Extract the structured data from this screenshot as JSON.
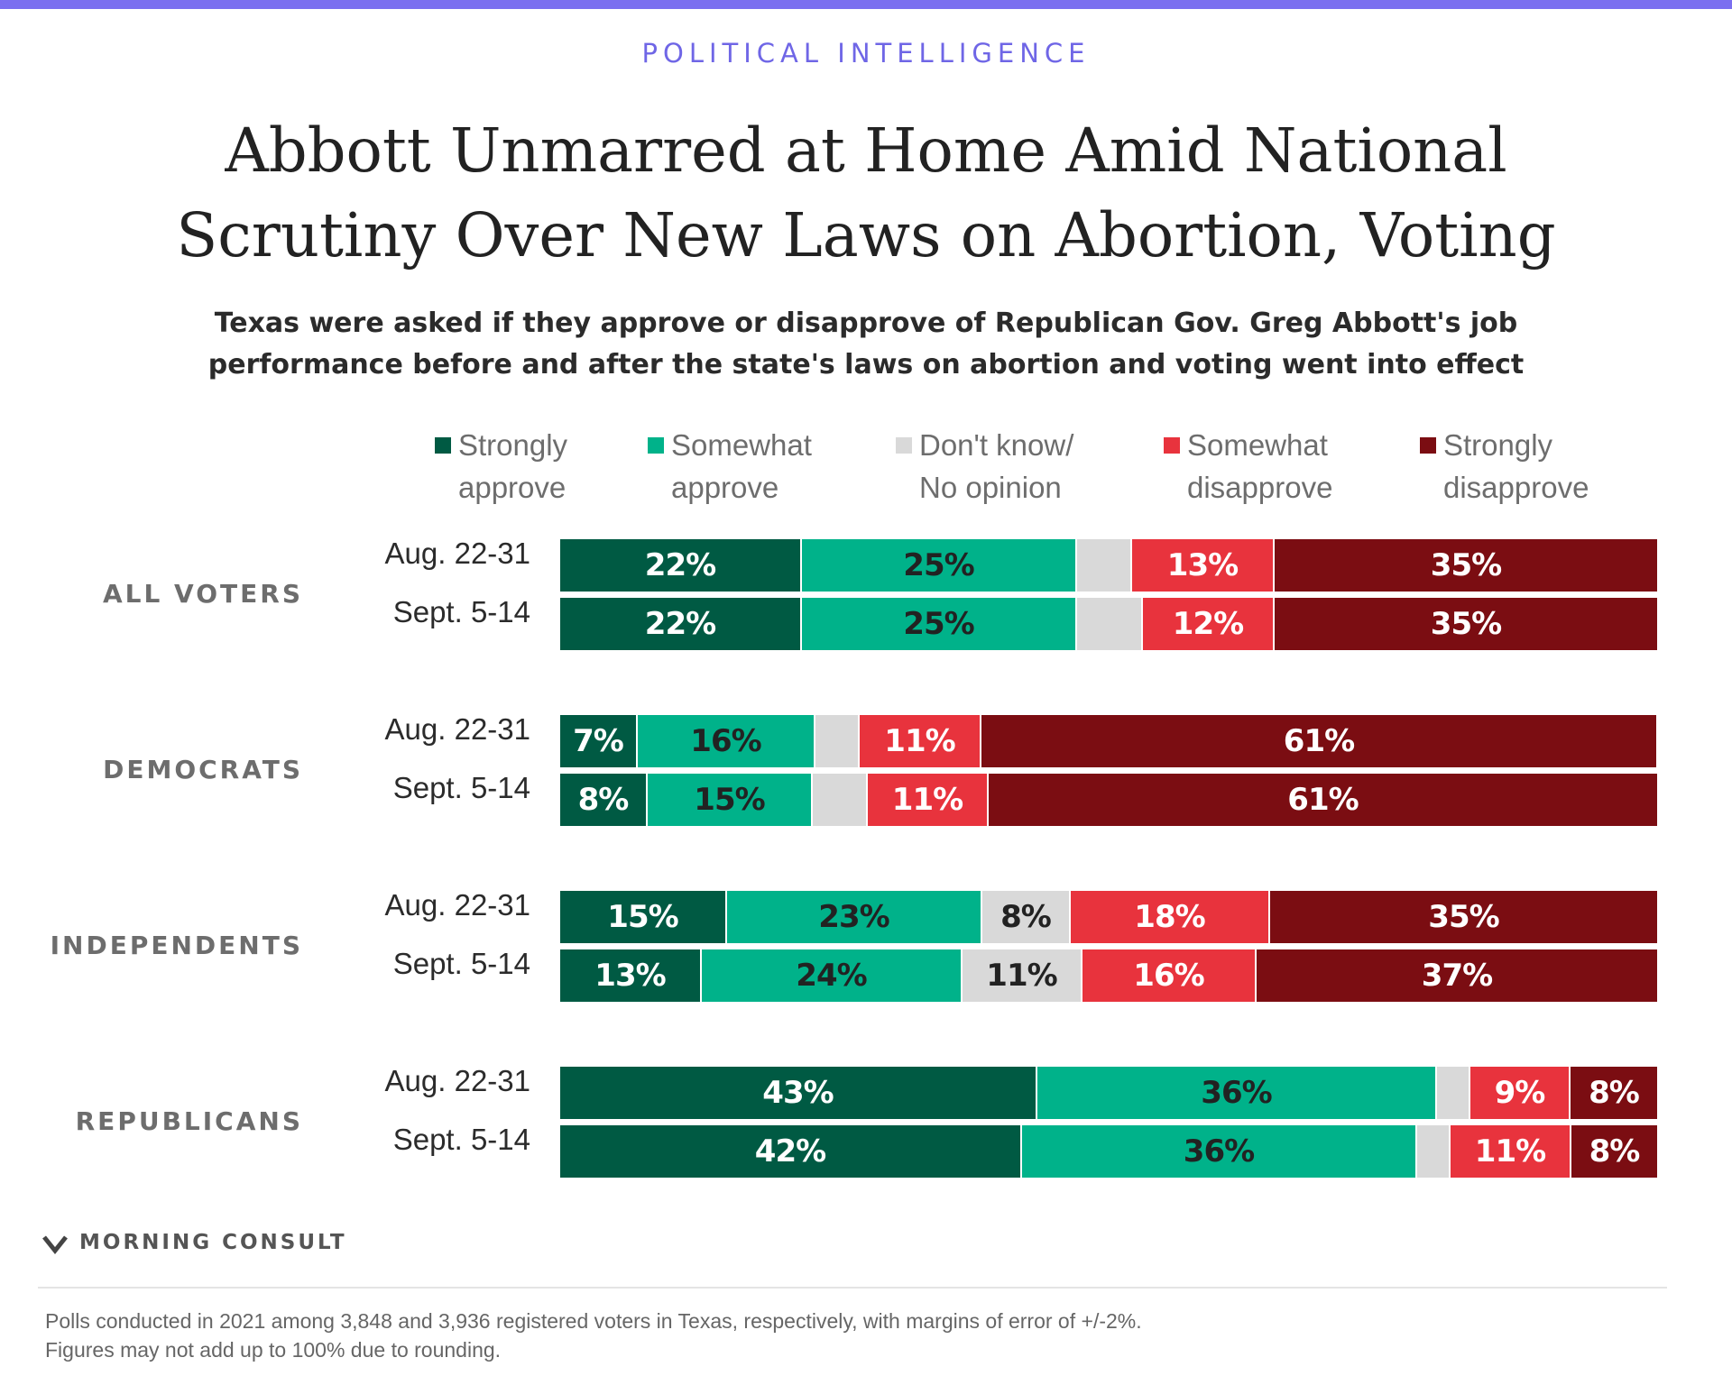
{
  "header": {
    "kicker": "POLITICAL INTELLIGENCE",
    "title_line1": "Abbott Unmarred at Home Amid National",
    "title_line2": "Scrutiny Over New Laws on Abortion, Voting",
    "subtitle_line1": "Texas were asked if they approve or disapprove of Republican Gov. Greg Abbott's job",
    "subtitle_line2": "performance before and after the state's laws on abortion and voting went into effect"
  },
  "legend": [
    {
      "line1": "Strongly",
      "line2": "approve",
      "color": "#005a43"
    },
    {
      "line1": "Somewhat",
      "line2": "approve",
      "color": "#00b28a"
    },
    {
      "line1": "Don't know/",
      "line2": "No opinion",
      "color": "#d9d9d9"
    },
    {
      "line1": "Somewhat",
      "line2": "disapprove",
      "color": "#e8333d"
    },
    {
      "line1": "Strongly",
      "line2": "disapprove",
      "color": "#7b0d12"
    }
  ],
  "chart_data": {
    "type": "bar",
    "orientation": "horizontal",
    "stacked": true,
    "units": "percent",
    "segments": [
      "Strongly approve",
      "Somewhat approve",
      "Don't know/ No opinion",
      "Somewhat disapprove",
      "Strongly disapprove"
    ],
    "colors": [
      "#005a43",
      "#00b28a",
      "#d9d9d9",
      "#e8333d",
      "#7b0d12"
    ],
    "label_colors": [
      "#ffffff",
      "#222222",
      "#222222",
      "#ffffff",
      "#ffffff"
    ],
    "groups": [
      {
        "name": "ALL VOTERS",
        "rows": [
          {
            "period": "Aug. 22-31",
            "values": [
              22,
              25,
              5,
              13,
              35
            ],
            "labels": [
              "22%",
              "25%",
              "",
              "13%",
              "35%"
            ]
          },
          {
            "period": "Sept. 5-14",
            "values": [
              22,
              25,
              6,
              12,
              35
            ],
            "labels": [
              "22%",
              "25%",
              "",
              "12%",
              "35%"
            ]
          }
        ]
      },
      {
        "name": "DEMOCRATS",
        "rows": [
          {
            "period": "Aug. 22-31",
            "values": [
              7,
              16,
              4,
              11,
              61
            ],
            "labels": [
              "7%",
              "16%",
              "",
              "11%",
              "61%"
            ]
          },
          {
            "period": "Sept. 5-14",
            "values": [
              8,
              15,
              5,
              11,
              61
            ],
            "labels": [
              "8%",
              "15%",
              "",
              "11%",
              "61%"
            ]
          }
        ]
      },
      {
        "name": "INDEPENDENTS",
        "rows": [
          {
            "period": "Aug. 22-31",
            "values": [
              15,
              23,
              8,
              18,
              35
            ],
            "labels": [
              "15%",
              "23%",
              "8%",
              "18%",
              "35%"
            ]
          },
          {
            "period": "Sept. 5-14",
            "values": [
              13,
              24,
              11,
              16,
              37
            ],
            "labels": [
              "13%",
              "24%",
              "11%",
              "16%",
              "37%"
            ]
          }
        ]
      },
      {
        "name": "REPUBLICANS",
        "rows": [
          {
            "period": "Aug. 22-31",
            "values": [
              43,
              36,
              3,
              9,
              8
            ],
            "labels": [
              "43%",
              "36%",
              "",
              "9%",
              "8%"
            ]
          },
          {
            "period": "Sept. 5-14",
            "values": [
              42,
              36,
              3,
              11,
              8
            ],
            "labels": [
              "42%",
              "36%",
              "",
              "11%",
              "8%"
            ]
          }
        ]
      }
    ]
  },
  "footer": {
    "brand": "MORNING CONSULT",
    "note_line1": "Polls conducted in 2021 among 3,848 and 3,936 registered voters in Texas, respectively, with margins of error of +/-2%.",
    "note_line2": "Figures may not add up to 100% due to rounding."
  }
}
